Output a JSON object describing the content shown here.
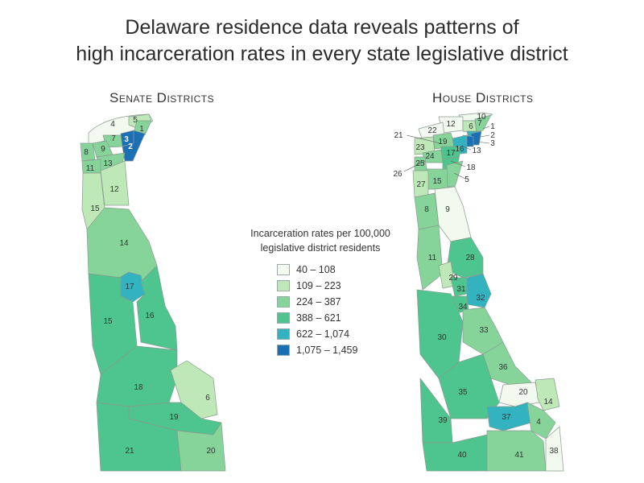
{
  "title_line1": "Delaware residence data reveals patterns of",
  "title_line2": "high incarceration rates in every state legislative district",
  "senate_label": "Senate Districts",
  "house_label": "House Districts",
  "legend": {
    "title_line1": "Incarceration rates per 100,000",
    "title_line2": "legislative district residents",
    "bins": [
      {
        "label": "40 – 108",
        "color": "#f2f9ee"
      },
      {
        "label": "109 – 223",
        "color": "#bfe8b8"
      },
      {
        "label": "224 – 387",
        "color": "#86d49a"
      },
      {
        "label": "388 – 621",
        "color": "#4ec48e"
      },
      {
        "label": "622 – 1,074",
        "color": "#33b3bf"
      },
      {
        "label": "1,075 – 1,459",
        "color": "#1a6fb5"
      }
    ]
  },
  "senate_districts": [
    "4",
    "5",
    "1",
    "3",
    "7",
    "2",
    "9",
    "8",
    "13",
    "11",
    "12",
    "15",
    "14",
    "17",
    "15",
    "16",
    "18",
    "6",
    "19",
    "21",
    "20"
  ],
  "house_districts": [
    "10",
    "12",
    "22",
    "6",
    "7",
    "1",
    "2",
    "3",
    "21",
    "19",
    "16",
    "13",
    "23",
    "17",
    "24",
    "18",
    "25",
    "26",
    "15",
    "5",
    "27",
    "8",
    "9",
    "11",
    "28",
    "29",
    "31",
    "32",
    "34",
    "30",
    "33",
    "36",
    "20",
    "14",
    "35",
    "37",
    "4",
    "39",
    "40",
    "41",
    "38"
  ]
}
